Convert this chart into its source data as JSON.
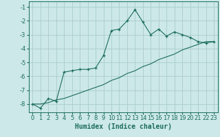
{
  "xlabel": "Humidex (Indice chaleur)",
  "ylabel": "",
  "background_color": "#cce8e8",
  "grid_color": "#aacccc",
  "line_color": "#1a6b5a",
  "xlim": [
    -0.5,
    23.5
  ],
  "ylim": [
    -8.6,
    -0.6
  ],
  "yticks": [
    -1,
    -2,
    -3,
    -4,
    -5,
    -6,
    -7,
    -8
  ],
  "xticks": [
    0,
    1,
    2,
    3,
    4,
    5,
    6,
    7,
    8,
    9,
    10,
    11,
    12,
    13,
    14,
    15,
    16,
    17,
    18,
    19,
    20,
    21,
    22,
    23
  ],
  "line1_x": [
    0,
    1,
    2,
    3,
    4,
    5,
    6,
    7,
    8,
    9,
    10,
    11,
    12,
    13,
    14,
    15,
    16,
    17,
    18,
    19,
    20,
    21,
    22,
    23
  ],
  "line1_y": [
    -8.0,
    -8.3,
    -7.6,
    -7.8,
    -5.7,
    -5.6,
    -5.5,
    -5.5,
    -5.4,
    -4.5,
    -2.7,
    -2.6,
    -2.0,
    -1.2,
    -2.1,
    -3.0,
    -2.6,
    -3.1,
    -2.8,
    -3.0,
    -3.2,
    -3.5,
    -3.6,
    -3.5
  ],
  "line2_x": [
    0,
    1,
    2,
    3,
    4,
    5,
    6,
    7,
    8,
    9,
    10,
    11,
    12,
    13,
    14,
    15,
    16,
    17,
    18,
    19,
    20,
    21,
    22,
    23
  ],
  "line2_y": [
    -8.0,
    -8.0,
    -7.9,
    -7.7,
    -7.6,
    -7.4,
    -7.2,
    -7.0,
    -6.8,
    -6.6,
    -6.3,
    -6.1,
    -5.8,
    -5.6,
    -5.3,
    -5.1,
    -4.8,
    -4.6,
    -4.4,
    -4.1,
    -3.9,
    -3.7,
    -3.5,
    -3.5
  ],
  "label_fontsize": 7,
  "tick_fontsize": 6
}
